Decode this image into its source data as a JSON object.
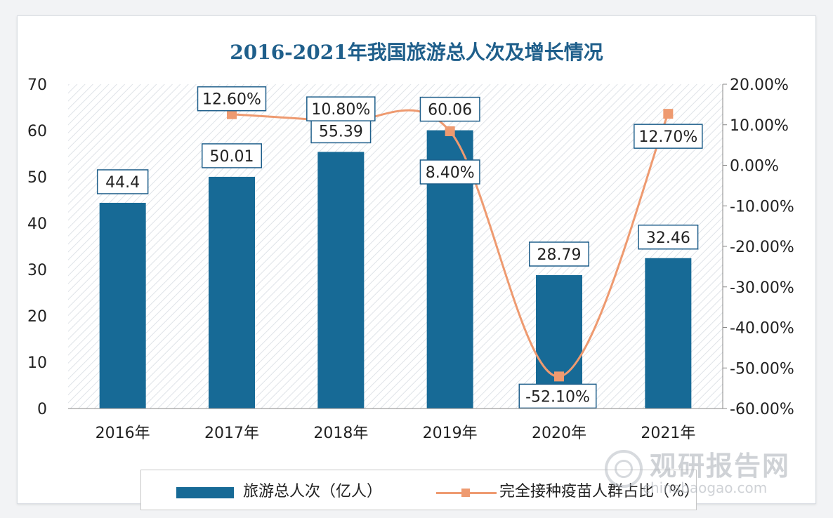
{
  "title": "2016-2021年我国旅游总人次及增长情况",
  "colors": {
    "bar": "#176a96",
    "line": "#ee9a70",
    "title": "#1f5f8b"
  },
  "legend": {
    "bar_label": "旅游总人次（亿人）",
    "line_label": "完全接种疫苗人群占比（%）"
  },
  "watermark": {
    "name": "观研报告网",
    "url": "chinabaogao.com"
  },
  "chart_data": {
    "type": "bar",
    "title": "2016-2021年我国旅游总人次及增长情况",
    "categories": [
      "2016年",
      "2017年",
      "2018年",
      "2019年",
      "2020年",
      "2021年"
    ],
    "series": [
      {
        "name": "旅游总人次（亿人）",
        "type": "bar",
        "axis": "left",
        "values": [
          44.4,
          50.01,
          55.39,
          60.06,
          28.79,
          32.46
        ],
        "labels": [
          "44.4",
          "50.01",
          "55.39",
          "60.06",
          "28.79",
          "32.46"
        ]
      },
      {
        "name": "完全接种疫苗人群占比（%）",
        "type": "line",
        "axis": "right",
        "values": [
          null,
          12.6,
          10.8,
          8.4,
          -52.1,
          12.7
        ],
        "labels": [
          null,
          "12.60%",
          "10.80%",
          "8.40%",
          "-52.10%",
          "12.70%"
        ]
      }
    ],
    "left_axis": {
      "min": 0,
      "max": 70,
      "ticks": [
        "0",
        "10",
        "20",
        "30",
        "40",
        "50",
        "60",
        "70"
      ]
    },
    "right_axis": {
      "min": -60,
      "max": 20,
      "ticks": [
        "-60.00%",
        "-50.00%",
        "-40.00%",
        "-30.00%",
        "-20.00%",
        "-10.00%",
        "0.00%",
        "10.00%",
        "20.00%"
      ]
    },
    "grid": false,
    "legend_position": "bottom"
  }
}
